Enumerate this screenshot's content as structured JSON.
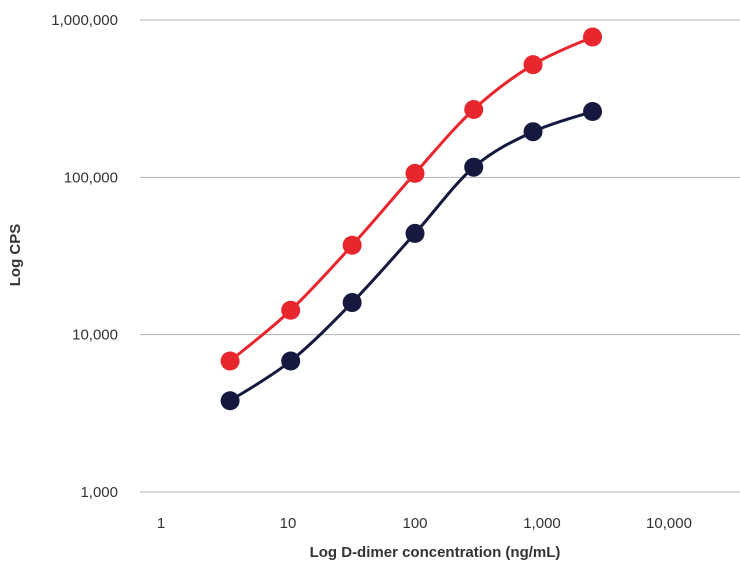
{
  "chart_data": {
    "type": "line",
    "xlabel": "Log D-dimer concentration (ng/mL)",
    "ylabel": "Log CPS",
    "x_scale": "log",
    "y_scale": "log",
    "xlim": [
      1,
      10000
    ],
    "ylim": [
      1000,
      1000000
    ],
    "x_ticks": [
      1,
      10,
      100,
      1000,
      10000
    ],
    "x_tick_labels": [
      "1",
      "10",
      "100",
      "1,000",
      "10,000"
    ],
    "y_ticks": [
      1000,
      10000,
      100000,
      1000000
    ],
    "y_tick_labels": [
      "1,000",
      "10,000",
      "100,000",
      "1,000,000"
    ],
    "grid": "horizontal",
    "legend": "none",
    "x": [
      3.5,
      10.5,
      32,
      100,
      290,
      850,
      2500
    ],
    "series": [
      {
        "color": "#e8262d",
        "values": [
          6800,
          14300,
          37000,
          106000,
          270000,
          520000,
          780000
        ]
      },
      {
        "color": "#15193f",
        "values": [
          3800,
          6800,
          16000,
          44000,
          116000,
          195000,
          262000
        ]
      }
    ]
  }
}
